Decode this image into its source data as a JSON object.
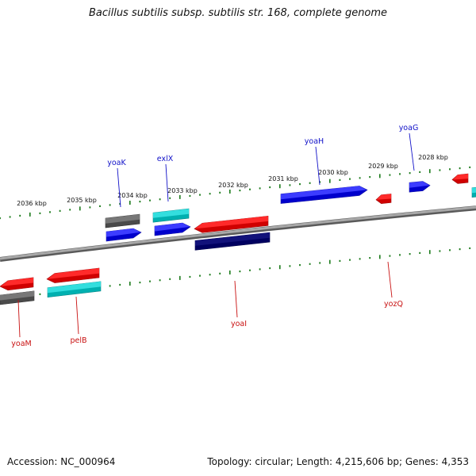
{
  "title": "Bacillus subtilis subsp. subtilis str. 168, complete genome",
  "footer": {
    "accession": "Accession: NC_000964",
    "summary": "Topology: circular; Length: 4,215,606 bp; Genes: 4,353"
  },
  "colors": {
    "label_forward": "#1010c8",
    "label_reverse": "#c81010",
    "ticks": "#1a7a1a",
    "backbone": "#7a7a7a"
  },
  "scale": {
    "unit": "kbp",
    "ticks": [
      2028,
      2029,
      2030,
      2031,
      2032,
      2033,
      2034,
      2035,
      2036
    ]
  },
  "genes": [
    {
      "name": "yoaK",
      "strand": "forward",
      "track": "label_outer",
      "color": "blue"
    },
    {
      "name": "exlX",
      "strand": "forward",
      "track": "label_outer",
      "color": "blue"
    },
    {
      "name": "yoaH",
      "strand": "forward",
      "track": "label_outer",
      "color": "blue"
    },
    {
      "name": "yoaG",
      "strand": "forward",
      "track": "label_outer",
      "color": "blue"
    },
    {
      "name": "yoaM",
      "strand": "reverse",
      "track": "label_inner",
      "color": "red"
    },
    {
      "name": "pelB",
      "strand": "reverse",
      "track": "label_inner",
      "color": "red"
    },
    {
      "name": "yoaI",
      "strand": "reverse",
      "track": "label_inner",
      "color": "red"
    },
    {
      "name": "yozQ",
      "strand": "reverse",
      "track": "label_inner",
      "color": "red"
    }
  ],
  "features": [
    {
      "color": "gray",
      "strand": "forward"
    },
    {
      "color": "blue",
      "strand": "forward"
    },
    {
      "color": "cyan",
      "strand": "forward"
    },
    {
      "color": "blue",
      "strand": "forward"
    },
    {
      "color": "blue",
      "strand": "forward"
    },
    {
      "color": "blue",
      "strand": "forward"
    },
    {
      "color": "red",
      "strand": "reverse"
    },
    {
      "color": "red",
      "strand": "reverse"
    },
    {
      "color": "red",
      "strand": "reverse"
    },
    {
      "color": "red",
      "strand": "reverse"
    },
    {
      "color": "red",
      "strand": "reverse"
    },
    {
      "color": "gray",
      "strand": "reverse"
    },
    {
      "color": "cyan",
      "strand": "reverse"
    },
    {
      "color": "navy",
      "strand": "reverse"
    },
    {
      "color": "cyan",
      "strand": "reverse"
    }
  ]
}
